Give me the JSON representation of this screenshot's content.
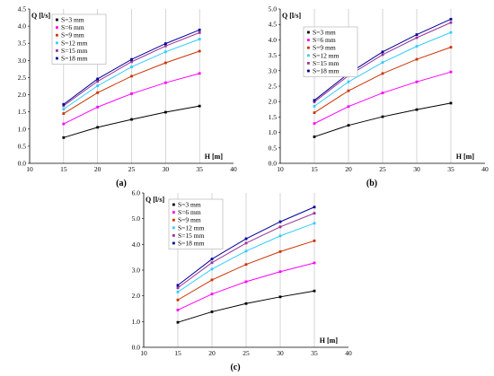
{
  "chart_data": [
    {
      "type": "line",
      "caption": "(a)",
      "ylabel": "Q [l/s]",
      "xlabel": "H [m]",
      "xlim": [
        10,
        40
      ],
      "ylim": [
        0,
        4.5
      ],
      "xticks": [
        "10",
        "15",
        "20",
        "25",
        "30",
        "35",
        "40"
      ],
      "yticks": [
        "0.0",
        "0.5",
        "1.0",
        "1.5",
        "2.0",
        "2.5",
        "3.0",
        "3.5",
        "4.0",
        "4.5"
      ],
      "ystep": 0.5,
      "grid": "vertical",
      "legend_position": "top-left",
      "x": [
        15,
        20,
        25,
        30,
        35
      ],
      "series": [
        {
          "name": "S=3 mm",
          "color": "#000000",
          "values": [
            0.75,
            1.05,
            1.28,
            1.49,
            1.67
          ]
        },
        {
          "name": "S=6 mm",
          "color": "#ff00ff",
          "values": [
            1.15,
            1.64,
            2.03,
            2.35,
            2.62
          ]
        },
        {
          "name": "S=9 mm",
          "color": "#cc3300",
          "values": [
            1.45,
            2.06,
            2.54,
            2.93,
            3.27
          ]
        },
        {
          "name": "S=12 mm",
          "color": "#33ccff",
          "values": [
            1.58,
            2.26,
            2.81,
            3.25,
            3.62
          ]
        },
        {
          "name": "S=15 mm",
          "color": "#993399",
          "values": [
            1.68,
            2.39,
            2.96,
            3.42,
            3.81
          ]
        },
        {
          "name": "S=18 mm",
          "color": "#000099",
          "values": [
            1.72,
            2.46,
            3.03,
            3.49,
            3.89
          ]
        }
      ]
    },
    {
      "type": "line",
      "caption": "(b)",
      "ylabel": "Q [l/s]",
      "xlabel": "H [m]",
      "xlim": [
        10,
        40
      ],
      "ylim": [
        0,
        5.0
      ],
      "xticks": [
        "10",
        "15",
        "20",
        "25",
        "30",
        "35",
        "40"
      ],
      "yticks": [
        "0.0",
        "0.5",
        "1.0",
        "1.5",
        "2.0",
        "2.5",
        "3.0",
        "3.5",
        "4.0",
        "4.5",
        "5.0"
      ],
      "ystep": 0.5,
      "grid": "vertical",
      "legend_position": "top-left",
      "x": [
        15,
        20,
        25,
        30,
        35
      ],
      "series": [
        {
          "name": "S=3 mm",
          "color": "#000000",
          "values": [
            0.86,
            1.23,
            1.51,
            1.74,
            1.95
          ]
        },
        {
          "name": "S=6 mm",
          "color": "#ff00ff",
          "values": [
            1.29,
            1.84,
            2.28,
            2.64,
            2.96
          ]
        },
        {
          "name": "S=9 mm",
          "color": "#cc3300",
          "values": [
            1.64,
            2.35,
            2.91,
            3.37,
            3.76
          ]
        },
        {
          "name": "S=12 mm",
          "color": "#33ccff",
          "values": [
            1.85,
            2.64,
            3.27,
            3.79,
            4.24
          ]
        },
        {
          "name": "S=15 mm",
          "color": "#993399",
          "values": [
            1.99,
            2.84,
            3.52,
            4.07,
            4.56
          ]
        },
        {
          "name": "S=18 mm",
          "color": "#000099",
          "values": [
            2.04,
            2.91,
            3.61,
            4.17,
            4.67
          ]
        }
      ]
    },
    {
      "type": "line",
      "caption": "(c)",
      "ylabel": "Q [l/s]",
      "xlabel": "H [m]",
      "xlim": [
        10,
        40
      ],
      "ylim": [
        0,
        6.0
      ],
      "xticks": [
        "10",
        "15",
        "20",
        "25",
        "30",
        "35",
        "40"
      ],
      "yticks": [
        "0.0",
        "1.0",
        "2.0",
        "3.0",
        "4.0",
        "5.0",
        "6.0"
      ],
      "ystep": 1.0,
      "grid": "vertical",
      "legend_position": "top-left",
      "x": [
        15,
        20,
        25,
        30,
        35
      ],
      "series": [
        {
          "name": "S=3 mm",
          "color": "#000000",
          "values": [
            0.97,
            1.38,
            1.7,
            1.96,
            2.19
          ]
        },
        {
          "name": "S=6 mm",
          "color": "#ff00ff",
          "values": [
            1.45,
            2.07,
            2.55,
            2.94,
            3.28
          ]
        },
        {
          "name": "S=9 mm",
          "color": "#cc3300",
          "values": [
            1.84,
            2.62,
            3.22,
            3.72,
            4.14
          ]
        },
        {
          "name": "S=12 mm",
          "color": "#33ccff",
          "values": [
            2.15,
            3.04,
            3.74,
            4.33,
            4.82
          ]
        },
        {
          "name": "S=15 mm",
          "color": "#993399",
          "values": [
            2.31,
            3.29,
            4.05,
            4.68,
            5.21
          ]
        },
        {
          "name": "S=18 mm",
          "color": "#000099",
          "values": [
            2.41,
            3.43,
            4.22,
            4.88,
            5.45
          ]
        }
      ]
    }
  ]
}
